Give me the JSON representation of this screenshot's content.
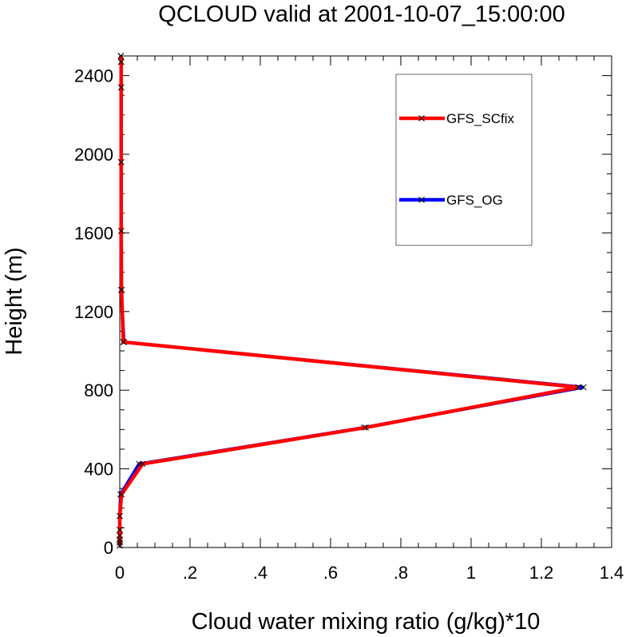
{
  "chart_data": {
    "type": "line",
    "title": "QCLOUD valid at 2001-10-07_15:00:00",
    "xlabel": "Cloud water mixing ratio (g/kg)*10",
    "ylabel": "Height (m)",
    "xlim": [
      0,
      1.4
    ],
    "ylim": [
      0,
      2500
    ],
    "x_ticks": [
      0,
      0.2,
      0.4,
      0.6,
      0.8,
      1.0,
      1.2,
      1.4
    ],
    "x_tick_labels": [
      "0",
      ".2",
      ".4",
      ".6",
      ".8",
      "1",
      "1.2",
      "1.4"
    ],
    "y_ticks": [
      0,
      400,
      800,
      1200,
      1600,
      2000,
      2400
    ],
    "y_tick_labels": [
      "0",
      "400",
      "800",
      "1200",
      "1600",
      "2000",
      "2400"
    ],
    "grid": false,
    "legend_position": "top-right",
    "series": [
      {
        "name": "GFS_SCfix",
        "color": "#ff0000",
        "marker": "x",
        "x": [
          0,
          0,
          0,
          0,
          0,
          0,
          0.005,
          0.065,
          0.7,
          1.305,
          0.01,
          0.005,
          0.004,
          0.004,
          0.004,
          0.004,
          0.003
        ],
        "y": [
          10,
          25,
          40,
          60,
          90,
          160,
          270,
          425,
          610,
          815,
          1045,
          1310,
          1610,
          1960,
          2340,
          2470,
          2500
        ]
      },
      {
        "name": "GFS_OG",
        "color": "#0000ff",
        "marker": "x",
        "x": [
          0,
          0,
          0,
          0,
          0,
          0,
          0.002,
          0.055,
          0.695,
          1.32,
          0.012,
          0.004,
          0.004,
          0.004,
          0.004,
          0.004,
          0.003
        ],
        "y": [
          10,
          25,
          40,
          60,
          90,
          160,
          270,
          425,
          610,
          815,
          1045,
          1310,
          1610,
          1960,
          2340,
          2470,
          2500
        ]
      }
    ]
  }
}
